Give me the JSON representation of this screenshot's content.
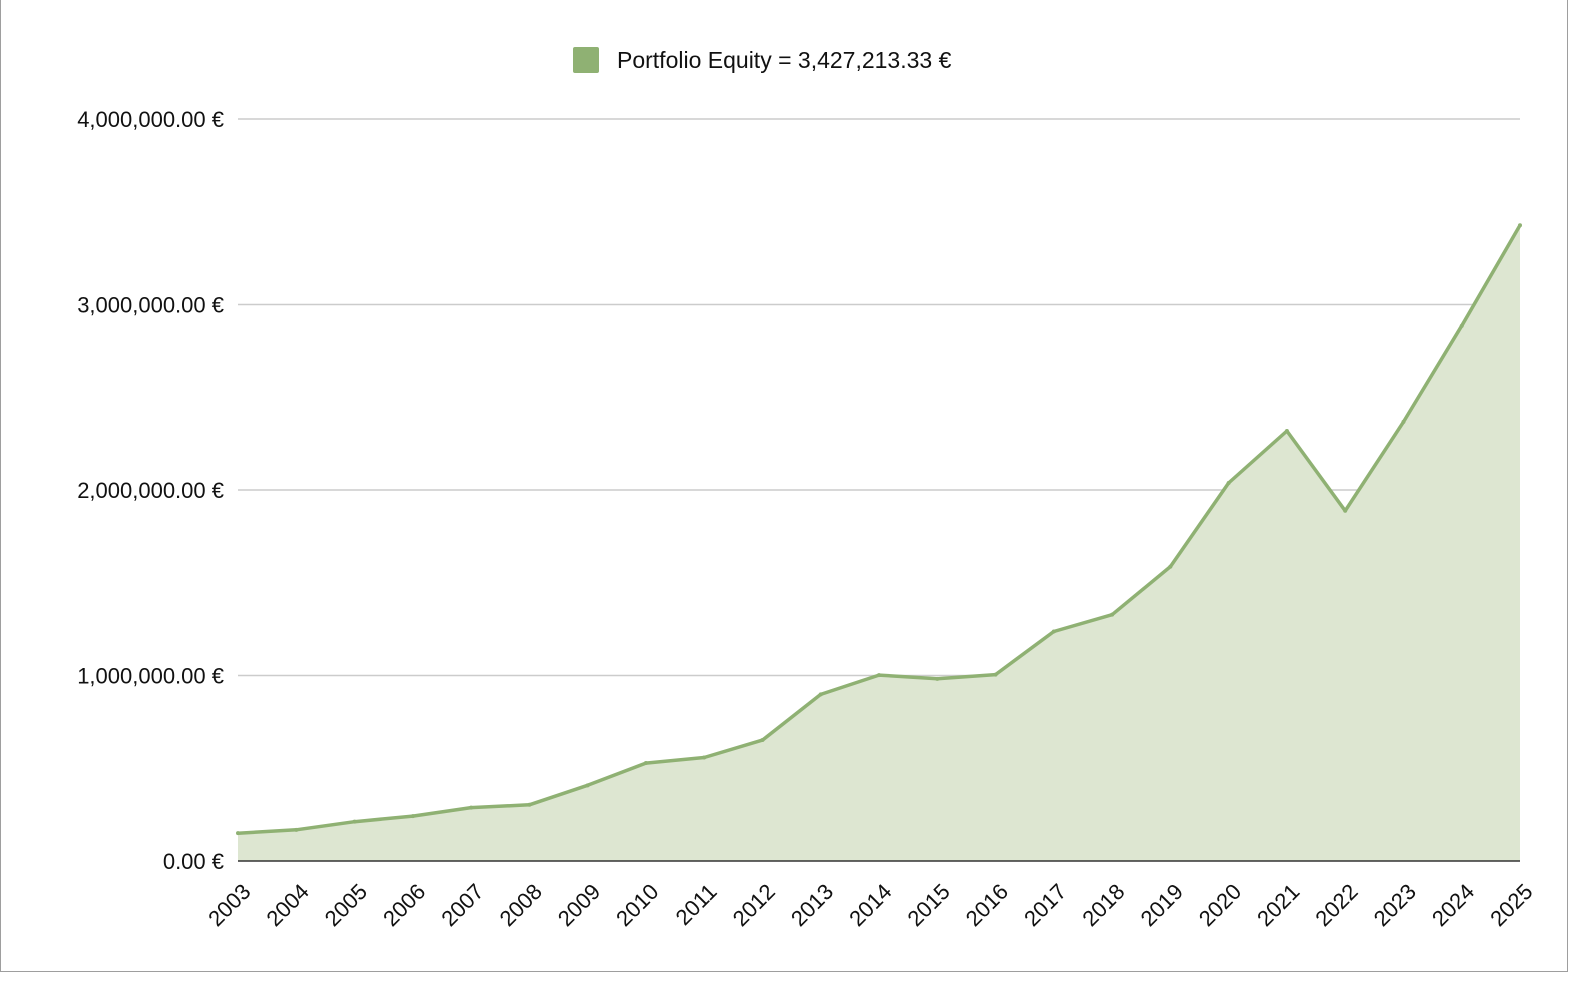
{
  "chart_data": {
    "type": "area",
    "legend": {
      "placement": "top-center",
      "label": "Portfolio Equity = 3,427,213.33 €",
      "color": "#8fb173"
    },
    "categories": [
      "2003",
      "2004",
      "2005",
      "2006",
      "2007",
      "2008",
      "2009",
      "2010",
      "2011",
      "2012",
      "2013",
      "2014",
      "2015",
      "2016",
      "2017",
      "2018",
      "2019",
      "2020",
      "2021",
      "2022",
      "2023",
      "2024",
      "2025"
    ],
    "series": [
      {
        "values": [
          150000,
          168000,
          212000,
          242000,
          288000,
          303000,
          408000,
          528000,
          558000,
          652000,
          898000,
          1002000,
          982000,
          1005000,
          1237000,
          1328000,
          1587000,
          2038000,
          2318000,
          1888000,
          2367000,
          2885000,
          3427213.33
        ],
        "line_color": "#8fb173",
        "fill_color": "#dde6d1"
      }
    ],
    "y_ticks": [
      "0.00 €",
      "1,000,000.00 €",
      "2,000,000.00 €",
      "3,000,000.00 €",
      "4,000,000.00 €"
    ],
    "y_tick_values": [
      0,
      1000000,
      2000000,
      3000000,
      4000000
    ],
    "ylim": [
      0,
      4000000
    ],
    "grid": true,
    "grid_color": "#cccccc",
    "title": "",
    "xlabel": "",
    "ylabel": ""
  }
}
